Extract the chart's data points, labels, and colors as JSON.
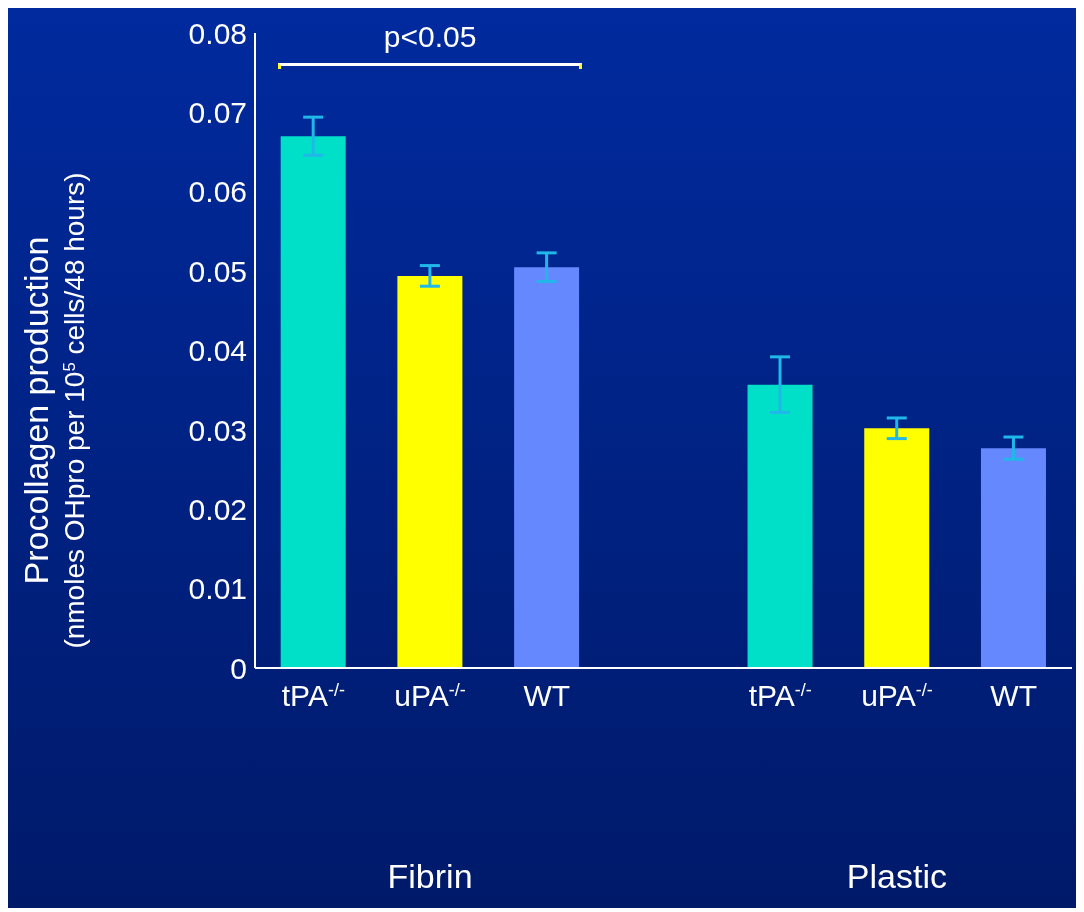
{
  "chart_data": {
    "type": "bar",
    "ylabel": "Procollagen production\n(nmoles OHpro per 10$^{5}$ cells/48 hours)",
    "categories": [
      "tPA$^{-/-}$",
      "uPA$^{-/-}$",
      "WT",
      null,
      "tPA$^{-/-}$",
      "uPA$^{-/-}$",
      "WT"
    ],
    "values": [
      0.067,
      0.0494,
      0.0505,
      null,
      0.0357,
      0.0302,
      0.0277
    ],
    "errors": [
      0.0024,
      0.0013,
      0.0018,
      null,
      0.0035,
      0.0013,
      0.0014
    ],
    "colors": [
      "#00e0c8",
      "#ffff00",
      "#6688ff",
      null,
      "#00e0c8",
      "#ffff00",
      "#6688ff"
    ],
    "ylim": [
      0,
      0.08
    ],
    "yticks": [
      0,
      0.01,
      0.02,
      0.03,
      0.04,
      0.05,
      0.06,
      0.07,
      0.08
    ],
    "grid": false,
    "legend": false,
    "annotations": [
      "p<0.05",
      "Fibrin",
      "Plastic"
    ]
  }
}
